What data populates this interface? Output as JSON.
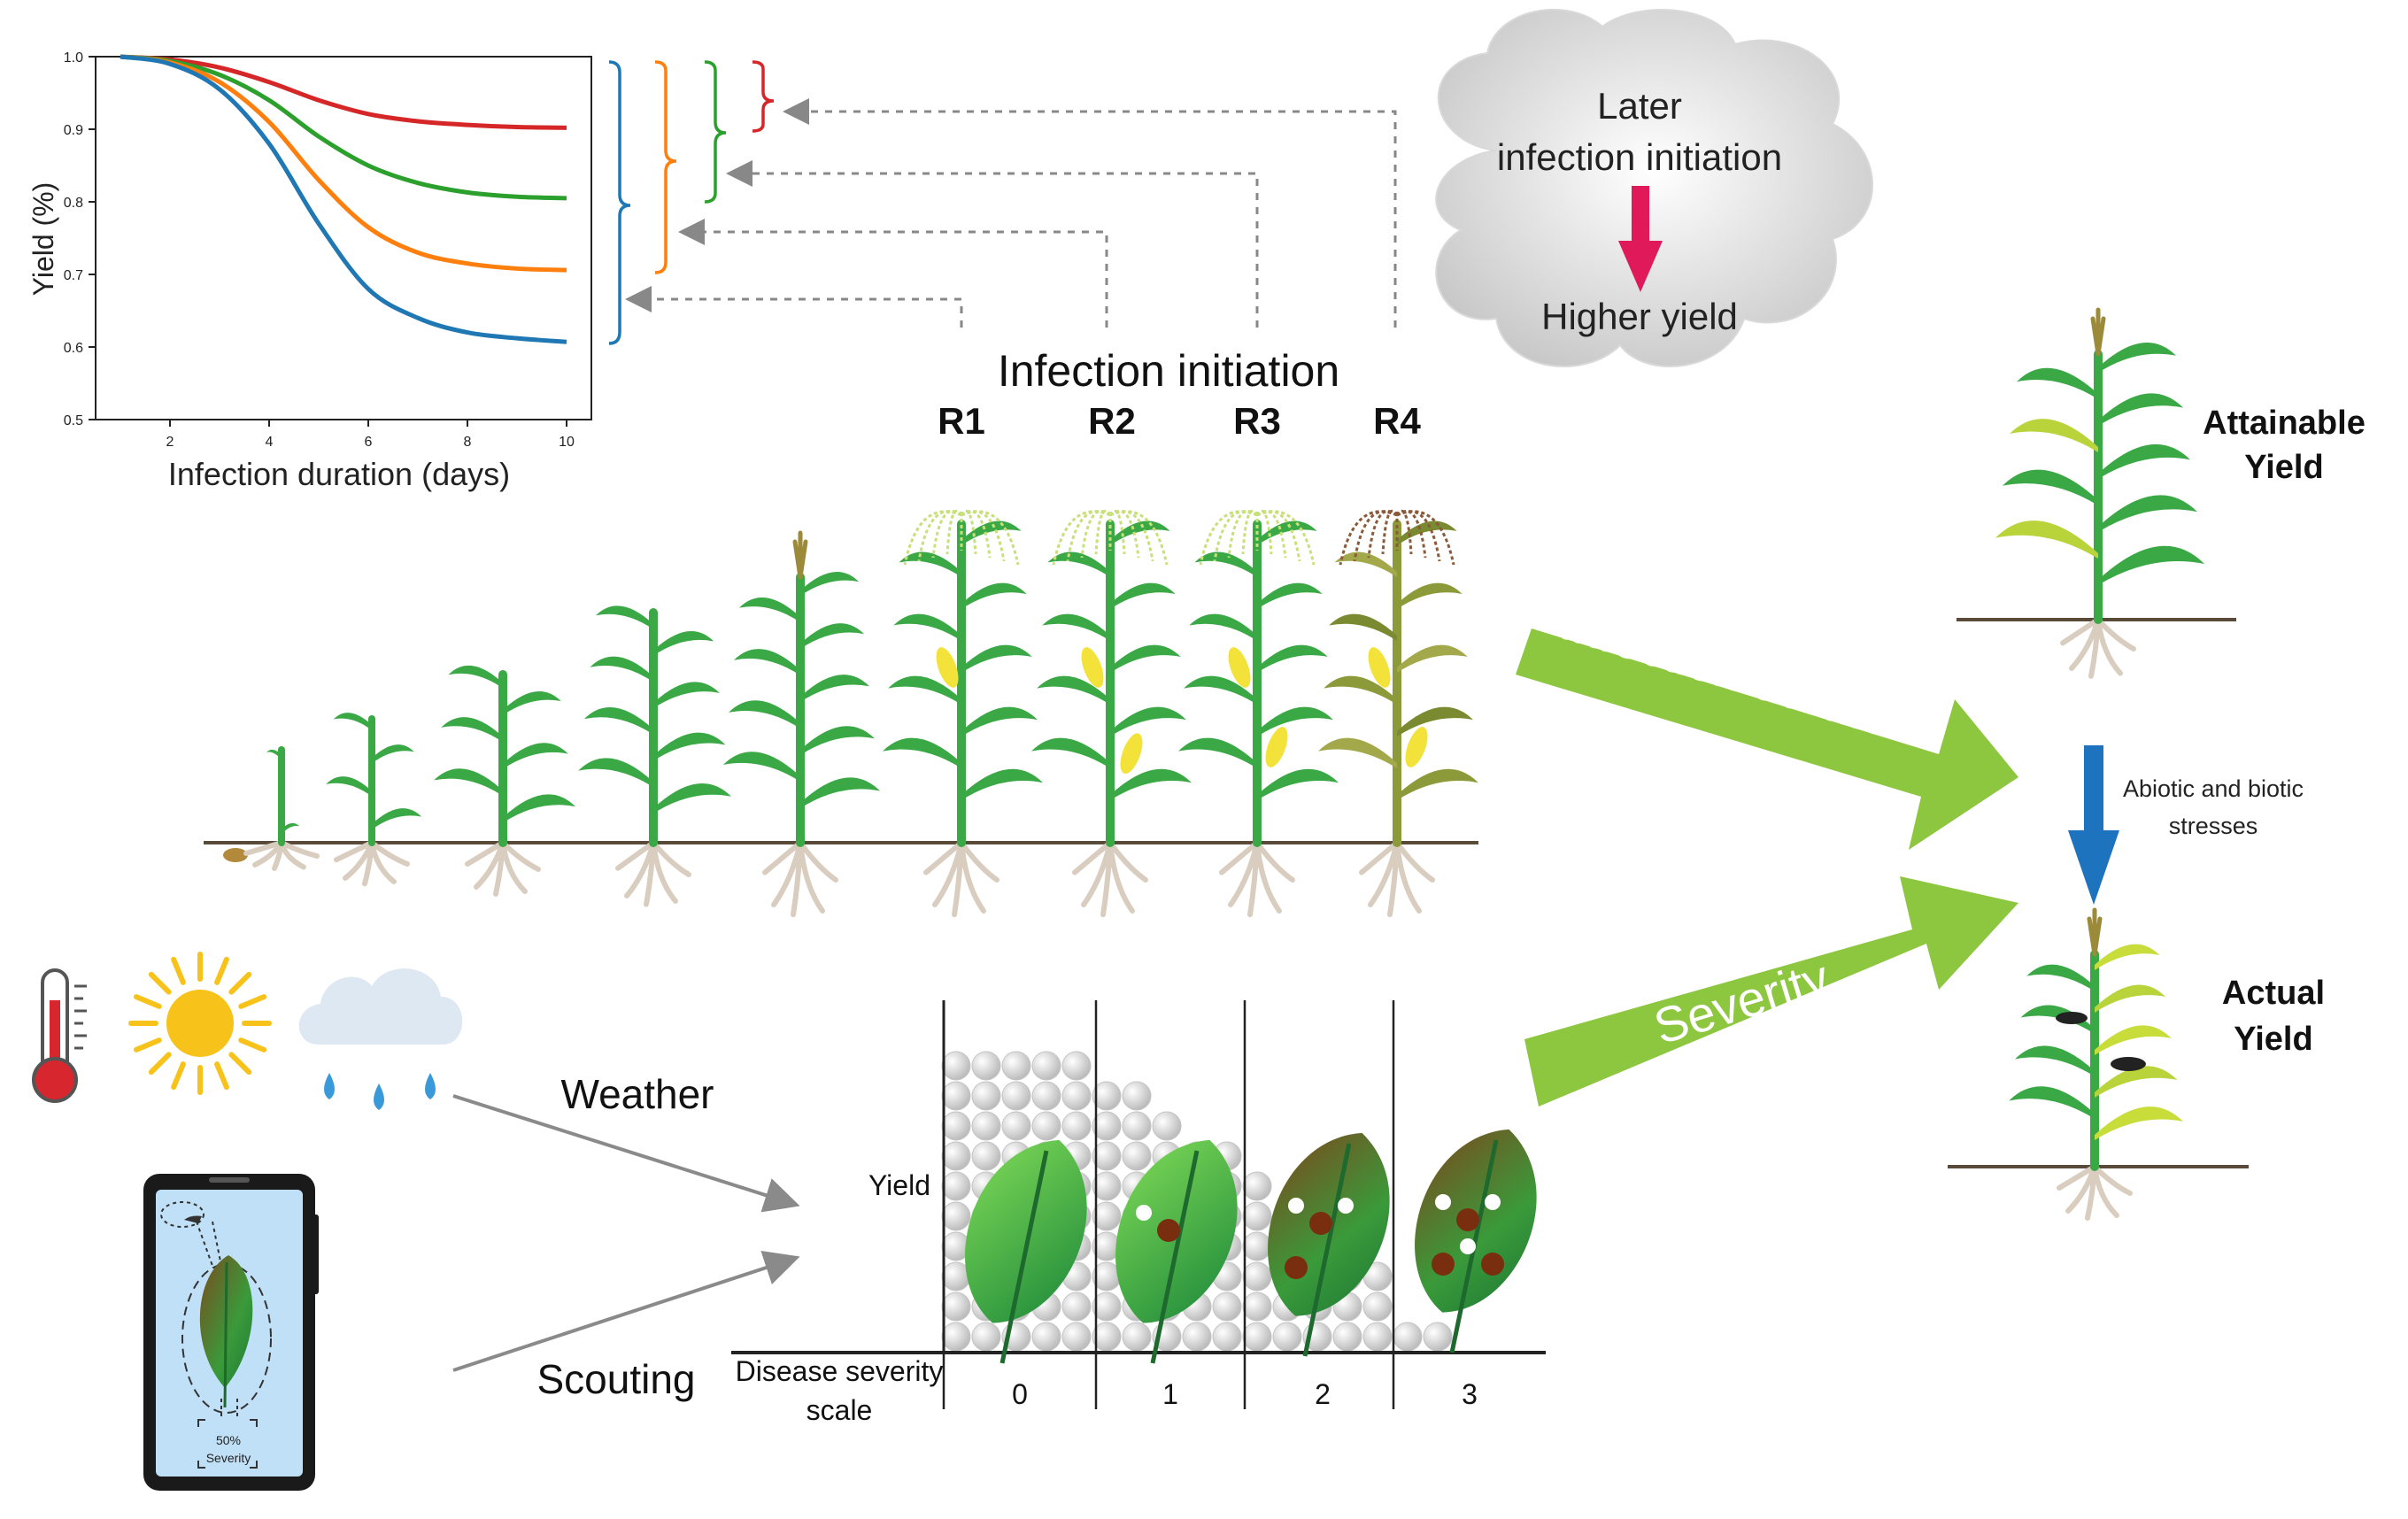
{
  "chart_data": {
    "type": "line",
    "xlabel": "Infection duration (days)",
    "ylabel": "Yield (%)",
    "xlim": [
      0.5,
      10.5
    ],
    "ylim": [
      0.5,
      1.0
    ],
    "xticks": [
      "2",
      "4",
      "6",
      "8",
      "10"
    ],
    "yticks": [
      "0.5",
      "0.6",
      "0.7",
      "0.8",
      "0.9",
      "1.0"
    ],
    "grid": false,
    "x": [
      1,
      2,
      3,
      4,
      5,
      6,
      7,
      8,
      9,
      10
    ],
    "series": [
      {
        "color": "#d62728",
        "values": [
          1.0,
          0.996,
          0.985,
          0.965,
          0.94,
          0.921,
          0.911,
          0.906,
          0.903,
          0.902
        ]
      },
      {
        "color": "#2ca02c",
        "values": [
          1.0,
          0.994,
          0.975,
          0.94,
          0.89,
          0.85,
          0.826,
          0.813,
          0.807,
          0.805
        ]
      },
      {
        "color": "#ff7f0e",
        "values": [
          1.0,
          0.992,
          0.965,
          0.91,
          0.83,
          0.765,
          0.73,
          0.715,
          0.708,
          0.706
        ]
      },
      {
        "color": "#1f77b4",
        "values": [
          1.0,
          0.99,
          0.955,
          0.88,
          0.77,
          0.68,
          0.64,
          0.62,
          0.612,
          0.607
        ]
      }
    ]
  },
  "stages": {
    "header": "Infection initiation",
    "labels": [
      "R1",
      "R2",
      "R3",
      "R4"
    ]
  },
  "cloud": {
    "line1": "Later",
    "line2": "infection initiation",
    "line3": "Higher yield"
  },
  "arrows": {
    "duration_label": "Infection duratoin",
    "severity_label": "Severity"
  },
  "yields": {
    "attainable_line1": "Attainable",
    "attainable_line2": "Yield",
    "stress_line1": "Abiotic and biotic",
    "stress_line2": "stresses",
    "actual_line1": "Actual",
    "actual_line2": "Yield"
  },
  "inputs": {
    "weather": "Weather",
    "scouting": "Scouting"
  },
  "phone": {
    "percent": "50%",
    "caption": "Severity"
  },
  "severity_chart": {
    "ylabel": "Yield",
    "xlabel_line1": "Disease severity",
    "xlabel_line2": "scale",
    "levels": [
      "0",
      "1",
      "2",
      "3"
    ]
  },
  "colors": {
    "leaf_green": "#3aa845",
    "big_arrow_green": "#8dc63f",
    "cloud_arrow": "#e0195a",
    "stress_arrow": "#1e73be",
    "dashed_arrow": "#888888"
  }
}
